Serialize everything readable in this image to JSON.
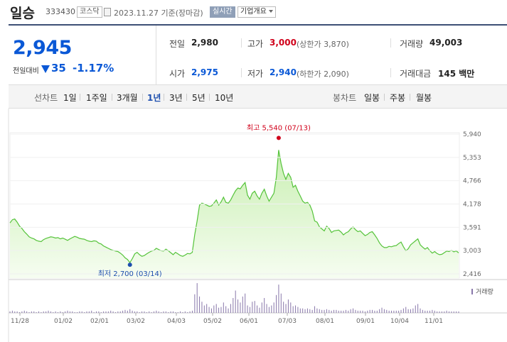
{
  "stock": {
    "name": "일승",
    "code": "333430",
    "market": "코스닥",
    "date": "2023.11.27 기준(장마감)",
    "live_label": "실시간",
    "info_label": "기업개요"
  },
  "quote": {
    "price": "2,945",
    "change_label": "전일대비",
    "change": "35",
    "change_pct": "-1.17%",
    "prev_close_label": "전일",
    "prev_close": "2,980",
    "high_label": "고가",
    "high": "3,000",
    "upper_limit": "(상한가 3,870)",
    "volume_label": "거래량",
    "volume": "49,003",
    "open_label": "시가",
    "open": "2,975",
    "low_label": "저가",
    "low": "2,940",
    "lower_limit": "(하한가 2,090)",
    "amount_label": "거래대금",
    "amount": "145 백만"
  },
  "period_bar": {
    "line_label": "선차트",
    "periods": [
      "1일",
      "1주일",
      "3개월",
      "1년",
      "3년",
      "5년",
      "10년"
    ],
    "selected": "1년",
    "candle_label": "봉차트",
    "candles": [
      "일봉",
      "주봉",
      "월봉"
    ]
  },
  "chart_data": {
    "type": "area",
    "y_ticks": [
      "5,940",
      "5,353",
      "4,766",
      "4,178",
      "3,591",
      "3,003",
      "2,416"
    ],
    "ylim": [
      2416,
      5940
    ],
    "x_ticks": [
      "11/28",
      "01/02",
      "02/01",
      "03/02",
      "04/03",
      "05/02",
      "06/01",
      "07/03",
      "08/01",
      "09/01",
      "10/04",
      "11/01"
    ],
    "high_annotation": "최고 5,540 (07/13)",
    "low_annotation": "최저 2,700 (03/14)",
    "high_value": 5540,
    "low_value": 2700,
    "volume_legend": "거래량",
    "colors": {
      "line": "#55c33a",
      "fill_top": "#c9efb2",
      "fill_bottom": "#f6fdf1",
      "volume": "#8877aa",
      "high": "#d0021b",
      "low": "#1e4fae"
    },
    "values": [
      3700,
      3780,
      3800,
      3720,
      3620,
      3560,
      3480,
      3420,
      3350,
      3320,
      3300,
      3260,
      3240,
      3230,
      3280,
      3310,
      3330,
      3350,
      3340,
      3320,
      3330,
      3300,
      3320,
      3290,
      3260,
      3300,
      3330,
      3360,
      3340,
      3310,
      3300,
      3290,
      3260,
      3240,
      3230,
      3250,
      3240,
      3190,
      3170,
      3120,
      3090,
      3060,
      3030,
      3010,
      2990,
      2980,
      2940,
      2890,
      2820,
      2780,
      2700,
      2800,
      2920,
      2960,
      2900,
      2860,
      2880,
      2920,
      2960,
      2990,
      3010,
      3060,
      3030,
      3000,
      2990,
      3040,
      3000,
      2950,
      2900,
      2960,
      2920,
      2880,
      2860,
      2890,
      2930,
      2920,
      2960,
      3400,
      3750,
      4150,
      4200,
      4180,
      4150,
      4120,
      4130,
      4200,
      4280,
      4150,
      4230,
      4350,
      4220,
      4200,
      4280,
      4400,
      4510,
      4580,
      4560,
      4650,
      4720,
      4400,
      4300,
      4450,
      4500,
      4380,
      4300,
      4450,
      4550,
      4380,
      4250,
      4350,
      4450,
      4850,
      5540,
      5200,
      4950,
      4800,
      4950,
      4850,
      4600,
      4650,
      4500,
      4380,
      4250,
      4200,
      4220,
      4150,
      4000,
      3750,
      3720,
      3600,
      3550,
      3500,
      3620,
      3560,
      3460,
      3500,
      3510,
      3520,
      3470,
      3400,
      3450,
      3480,
      3550,
      3600,
      3530,
      3480,
      3500,
      3440,
      3380,
      3410,
      3460,
      3480,
      3400,
      3310,
      3200,
      3120,
      3080,
      3080,
      3110,
      3100,
      3120,
      3130,
      3180,
      3220,
      3100,
      3000,
      3050,
      3150,
      3200,
      3250,
      3300,
      3150,
      3090,
      3040,
      3080,
      3000,
      2940,
      2980,
      2930,
      2900,
      2910,
      2950,
      2990,
      2980,
      3010,
      2970,
      2995,
      2945
    ],
    "volume": [
      2,
      3,
      2,
      2,
      1,
      2,
      3,
      2,
      1,
      2,
      2,
      1,
      2,
      1,
      2,
      2,
      3,
      2,
      1,
      2,
      1,
      2,
      1,
      2,
      3,
      2,
      2,
      1,
      1,
      2,
      2,
      1,
      2,
      2,
      3,
      1,
      2,
      2,
      1,
      2,
      2,
      2,
      3,
      2,
      1,
      2,
      2,
      3,
      4,
      3,
      5,
      3,
      2,
      2,
      1,
      2,
      2,
      1,
      2,
      1,
      2,
      3,
      2,
      1,
      2,
      2,
      1,
      2,
      2,
      1,
      1,
      2,
      1,
      2,
      1,
      2,
      3,
      25,
      40,
      22,
      15,
      10,
      12,
      8,
      6,
      10,
      12,
      7,
      8,
      14,
      9,
      6,
      12,
      20,
      30,
      18,
      14,
      22,
      26,
      10,
      8,
      15,
      16,
      10,
      7,
      14,
      20,
      12,
      8,
      10,
      14,
      24,
      38,
      26,
      15,
      12,
      18,
      14,
      9,
      10,
      8,
      6,
      6,
      5,
      6,
      5,
      4,
      9,
      6,
      5,
      4,
      4,
      5,
      4,
      3,
      4,
      4,
      3,
      3,
      3,
      4,
      3,
      5,
      6,
      4,
      3,
      3,
      3,
      2,
      3,
      4,
      4,
      3,
      3,
      5,
      7,
      5,
      4,
      3,
      3,
      3,
      3,
      3,
      4,
      6,
      8,
      5,
      5,
      6,
      10,
      12,
      6,
      4,
      3,
      3,
      3,
      4,
      3,
      2,
      2,
      2,
      2,
      3,
      2,
      2,
      2,
      2,
      2
    ]
  }
}
